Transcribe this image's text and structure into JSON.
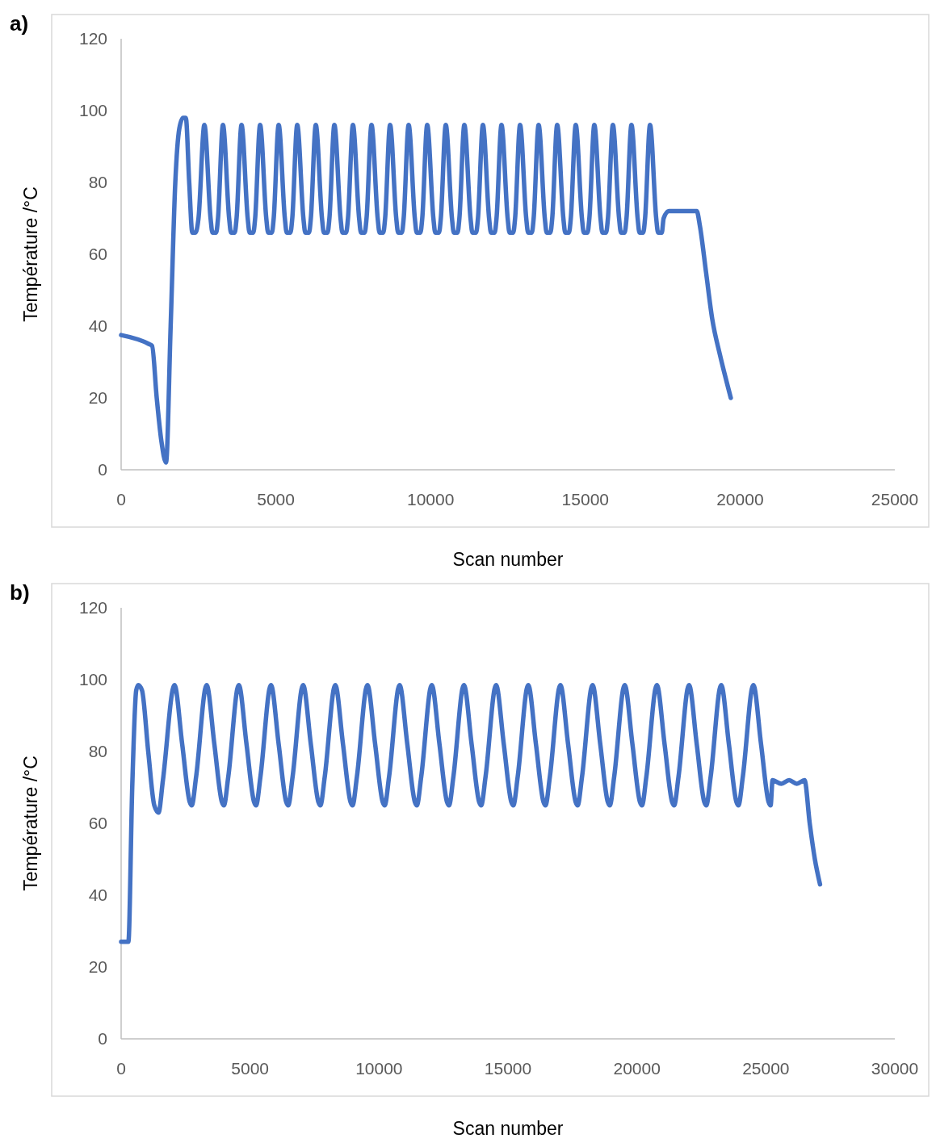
{
  "chart_data": [
    {
      "type": "line",
      "xlabel": "Scan number",
      "ylabel": "Température /°C",
      "annotations": [
        "a)"
      ],
      "xlim": [
        0,
        25000
      ],
      "xticks": [
        0,
        5000,
        10000,
        15000,
        20000,
        25000
      ],
      "ylim": [
        0,
        120
      ],
      "yticks": [
        0,
        20,
        40,
        60,
        80,
        100,
        120
      ],
      "series": [
        {
          "color": "#4472c4",
          "x": [
            0,
            900,
            1000,
            1150,
            1300,
            1450,
            1600,
            1750,
            1880,
            2000,
            2090,
            2200,
            2300,
            2400,
            2500,
            2690,
            2890,
            2950,
            3070,
            3130,
            3290,
            3490,
            3550,
            3670,
            3730,
            3890,
            4090,
            4150,
            4270,
            4330,
            4490,
            4690,
            4750,
            4870,
            4930,
            5090,
            5290,
            5350,
            5470,
            5530,
            5690,
            5890,
            5950,
            6070,
            6130,
            6290,
            6490,
            6550,
            6670,
            6730,
            6890,
            7090,
            7150,
            7270,
            7330,
            7490,
            7690,
            7750,
            7870,
            7930,
            8090,
            8290,
            8350,
            8470,
            8530,
            8690,
            8890,
            8950,
            9070,
            9130,
            9290,
            9490,
            9550,
            9670,
            9730,
            9890,
            10090,
            10150,
            10270,
            10330,
            10490,
            10690,
            10750,
            10870,
            10930,
            11090,
            11290,
            11350,
            11470,
            11530,
            11690,
            11890,
            11950,
            12070,
            12130,
            12290,
            12490,
            12550,
            12670,
            12730,
            12890,
            13090,
            13150,
            13270,
            13330,
            13490,
            13690,
            13750,
            13870,
            13930,
            14090,
            14290,
            14350,
            14470,
            14530,
            14690,
            14890,
            14950,
            15070,
            15130,
            15290,
            15490,
            15550,
            15670,
            15730,
            15890,
            16090,
            16150,
            16270,
            16330,
            16490,
            16690,
            16750,
            16870,
            16930,
            17090,
            17290,
            17350,
            17470,
            17530,
            17700,
            18600,
            18700,
            18900,
            19100,
            19350,
            19550,
            19700
          ],
          "values": [
            37.5,
            35,
            34.5,
            20,
            8,
            2,
            40,
            80,
            95,
            98,
            98,
            80,
            66,
            66,
            70,
            96,
            70,
            66,
            66,
            70,
            96,
            70,
            66,
            66,
            70,
            96,
            70,
            66,
            66,
            70,
            96,
            70,
            66,
            66,
            70,
            96,
            70,
            66,
            66,
            70,
            96,
            70,
            66,
            66,
            70,
            96,
            70,
            66,
            66,
            70,
            96,
            70,
            66,
            66,
            70,
            96,
            70,
            66,
            66,
            70,
            96,
            70,
            66,
            66,
            70,
            96,
            70,
            66,
            66,
            70,
            96,
            70,
            66,
            66,
            70,
            96,
            70,
            66,
            66,
            70,
            96,
            70,
            66,
            66,
            70,
            96,
            70,
            66,
            66,
            70,
            96,
            70,
            66,
            66,
            70,
            96,
            70,
            66,
            66,
            70,
            96,
            70,
            66,
            66,
            70,
            96,
            70,
            66,
            66,
            70,
            96,
            70,
            66,
            66,
            70,
            96,
            70,
            66,
            66,
            70,
            96,
            70,
            66,
            66,
            70,
            96,
            70,
            66,
            66,
            70,
            96,
            70,
            66,
            66,
            70,
            96,
            70,
            66,
            66,
            70,
            72,
            72,
            68,
            55,
            42,
            32,
            25,
            20
          ]
        }
      ]
    },
    {
      "type": "line",
      "xlabel": "Scan number",
      "ylabel": "Température /°C",
      "annotations": [
        "b)"
      ],
      "xlim": [
        0,
        30000
      ],
      "xticks": [
        0,
        5000,
        10000,
        15000,
        20000,
        25000,
        30000
      ],
      "ylim": [
        0,
        120
      ],
      "yticks": [
        0,
        20,
        40,
        60,
        80,
        100,
        120
      ],
      "series": [
        {
          "color": "#4472c4",
          "x": [
            0,
            280,
            430,
            585,
            665,
            810,
            1050,
            1285,
            1450,
            1620,
            2068,
            2368,
            2658,
            2738,
            2908,
            3315,
            3615,
            3905,
            3985,
            4155,
            4562,
            4862,
            5152,
            5232,
            5402,
            5809,
            6109,
            6399,
            6479,
            6649,
            7056,
            7356,
            7646,
            7726,
            7896,
            8303,
            8603,
            8893,
            8973,
            9143,
            9550,
            9850,
            10140,
            10220,
            10390,
            10797,
            11097,
            11387,
            11467,
            11637,
            12044,
            12344,
            12634,
            12714,
            12884,
            13291,
            13591,
            13881,
            13961,
            14131,
            14538,
            14838,
            15128,
            15208,
            15378,
            15785,
            16085,
            16375,
            16455,
            16625,
            17032,
            17332,
            17622,
            17702,
            17872,
            18279,
            18579,
            18869,
            18949,
            19119,
            19526,
            19826,
            20116,
            20196,
            20366,
            20773,
            21073,
            21363,
            21443,
            21613,
            22020,
            22320,
            22610,
            22690,
            22860,
            23267,
            23567,
            23857,
            23937,
            24107,
            24514,
            24814,
            25104,
            25184,
            25260,
            25600,
            25900,
            26200,
            26500,
            26700,
            26900,
            27100
          ],
          "values": [
            27,
            27,
            70,
            97,
            98.5,
            97,
            80,
            65,
            63,
            72,
            98.5,
            82,
            66,
            65,
            73,
            98.5,
            82,
            66,
            65,
            73,
            98.5,
            82,
            66,
            65,
            73,
            98.5,
            82,
            66,
            65,
            73,
            98.5,
            82,
            66,
            65,
            73,
            98.5,
            82,
            66,
            65,
            73,
            98.5,
            82,
            66,
            65,
            73,
            98.5,
            82,
            66,
            65,
            73,
            98.5,
            82,
            66,
            65,
            73,
            98.5,
            82,
            66,
            65,
            73,
            98.5,
            82,
            66,
            65,
            73,
            98.5,
            82,
            66,
            65,
            73,
            98.5,
            82,
            66,
            65,
            73,
            98.5,
            82,
            66,
            65,
            73,
            98.5,
            82,
            66,
            65,
            73,
            98.5,
            82,
            66,
            65,
            73,
            98.5,
            82,
            66,
            65,
            73,
            98.5,
            82,
            66,
            65,
            73,
            98.5,
            82,
            66,
            65,
            72,
            71,
            72,
            71,
            72,
            60,
            50,
            43
          ]
        }
      ]
    }
  ]
}
